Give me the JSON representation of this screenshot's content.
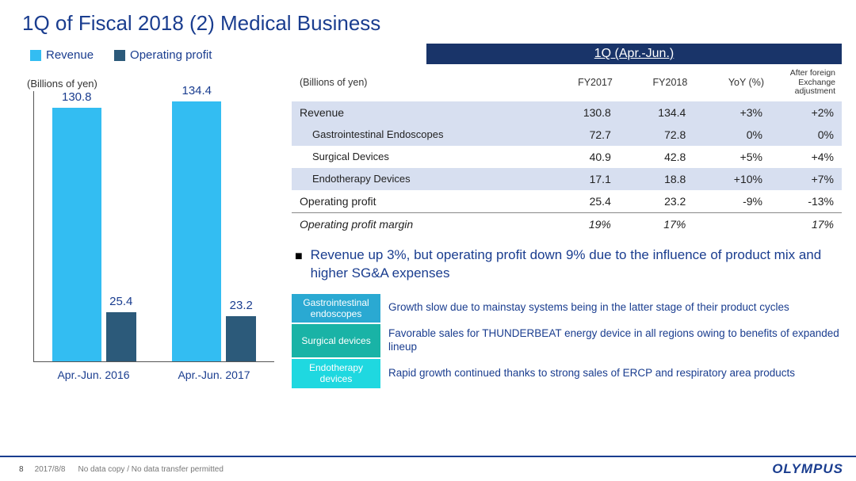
{
  "title": "1Q of Fiscal 2018 (2) Medical Business",
  "chart": {
    "legend": {
      "revenue": "Revenue",
      "profit": "Operating profit"
    },
    "colors": {
      "revenue": "#33bdf2",
      "profit": "#2c5a7a"
    },
    "unit": "(Billions of yen)",
    "ymax": 140,
    "bar_width_rev": 62,
    "bar_width_prof": 38,
    "groups": [
      {
        "label": "Apr.-Jun. 2016",
        "revenue": 130.8,
        "profit": 25.4
      },
      {
        "label": "Apr.-Jun. 2017",
        "revenue": 134.4,
        "profit": 23.2
      }
    ]
  },
  "table": {
    "banner": "1Q (Apr.-Jun.)",
    "unit": "(Billions of yen)",
    "columns": [
      "FY2017",
      "FY2018",
      "YoY (%)",
      "After foreign Exchange adjustment"
    ],
    "rows": [
      {
        "label": "Revenue",
        "vals": [
          "130.8",
          "134.4",
          "+3%",
          "+2%"
        ],
        "alt": true
      },
      {
        "label": "Gastrointestinal Endoscopes",
        "vals": [
          "72.7",
          "72.8",
          "0%",
          "0%"
        ],
        "sub": true,
        "alt": true
      },
      {
        "label": "Surgical Devices",
        "vals": [
          "40.9",
          "42.8",
          "+5%",
          "+4%"
        ],
        "sub": true
      },
      {
        "label": "Endotherapy Devices",
        "vals": [
          "17.1",
          "18.8",
          "+10%",
          "+7%"
        ],
        "sub": true,
        "alt": true
      },
      {
        "label": "Operating profit",
        "vals": [
          "25.4",
          "23.2",
          "-9%",
          "-13%"
        ]
      },
      {
        "label": "Operating profit margin",
        "vals": [
          "19%",
          "17%",
          "",
          "17%"
        ],
        "italic": true,
        "border": true
      }
    ]
  },
  "bullet": "Revenue up 3%, but operating profit down 9% due to the influence of product mix and higher SG&A expenses",
  "notes": [
    {
      "tag": "Gastrointestinal endoscopes",
      "color": "#2aa9d2",
      "text": "Growth slow due to mainstay systems being in the latter stage of their product cycles"
    },
    {
      "tag": "Surgical devices",
      "color": "#19b3a6",
      "text": "Favorable sales for THUNDERBEAT energy device in all regions owing to benefits of expanded lineup"
    },
    {
      "tag": "Endotherapy devices",
      "color": "#1fd8e0",
      "text": "Rapid growth continued thanks to strong sales of ERCP and respiratory area products"
    }
  ],
  "footer": {
    "page": "8",
    "date": "2017/8/8",
    "note": "No data copy / No data transfer permitted",
    "logo": "OLYMPUS"
  }
}
